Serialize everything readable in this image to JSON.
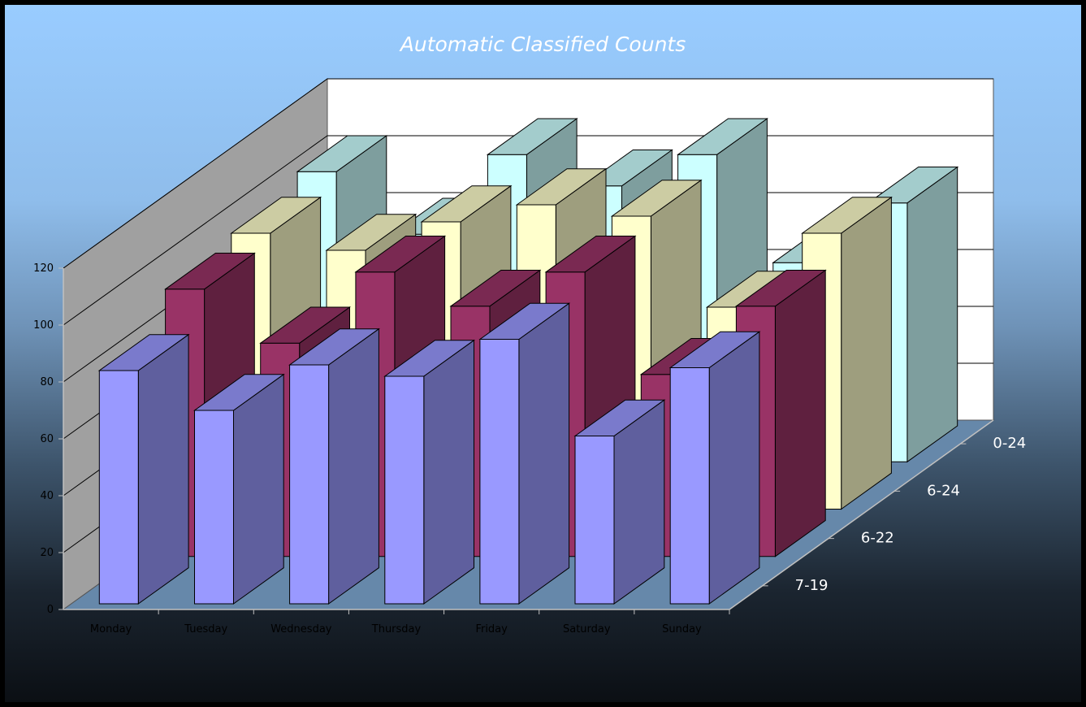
{
  "chart_data": {
    "type": "bar",
    "title": "Automatic Classified Counts",
    "categories": [
      "Monday",
      "Tuesday",
      "Wednesday",
      "Thursday",
      "Friday",
      "Saturday",
      "Sunday"
    ],
    "series": [
      {
        "name": "7-19",
        "values": [
          82,
          68,
          84,
          80,
          93,
          59,
          83
        ],
        "color": "#9999ff"
      },
      {
        "name": "6-22",
        "values": [
          94,
          75,
          100,
          88,
          100,
          64,
          88
        ],
        "color": "#993366"
      },
      {
        "name": "6-24",
        "values": [
          97,
          91,
          101,
          107,
          103,
          71,
          97
        ],
        "color": "#ffffcc"
      },
      {
        "name": "0-24",
        "values": [
          102,
          80,
          108,
          97,
          108,
          70,
          91
        ],
        "color": "#ccffff"
      }
    ],
    "ylim": [
      0,
      120
    ],
    "yticks": [
      0,
      20,
      40,
      60,
      80,
      100,
      120
    ],
    "grid": true,
    "colors": {
      "background_top": "#99ccff",
      "background_bottom": "#0b0f14",
      "back_wall": "#ffffff",
      "side_wall": "#a0a0a0",
      "floor": "#6688aa"
    }
  }
}
